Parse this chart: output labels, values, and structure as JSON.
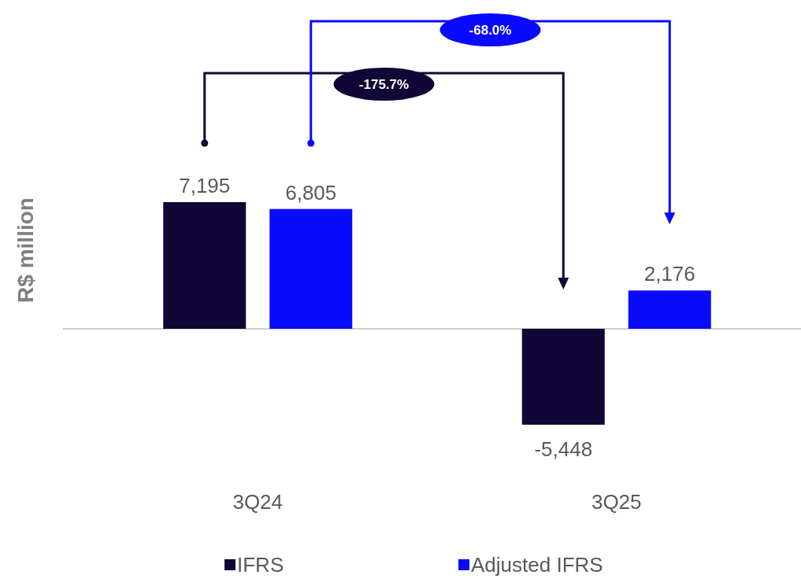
{
  "chart_data": {
    "type": "bar",
    "ylabel": "R$ million",
    "categories": [
      "3Q24",
      "3Q25"
    ],
    "series": [
      {
        "name": "IFRS",
        "color": "#110636",
        "values": [
          7195,
          -5448
        ],
        "value_labels": [
          "7,195",
          "-5,448"
        ]
      },
      {
        "name": "Adjusted IFRS",
        "color": "#0a0aff",
        "values": [
          6805,
          2176
        ],
        "value_labels": [
          "6,805",
          "2,176"
        ]
      }
    ],
    "legend": "bottom",
    "annotations": [
      "-175.7%",
      "-68.0%"
    ]
  }
}
